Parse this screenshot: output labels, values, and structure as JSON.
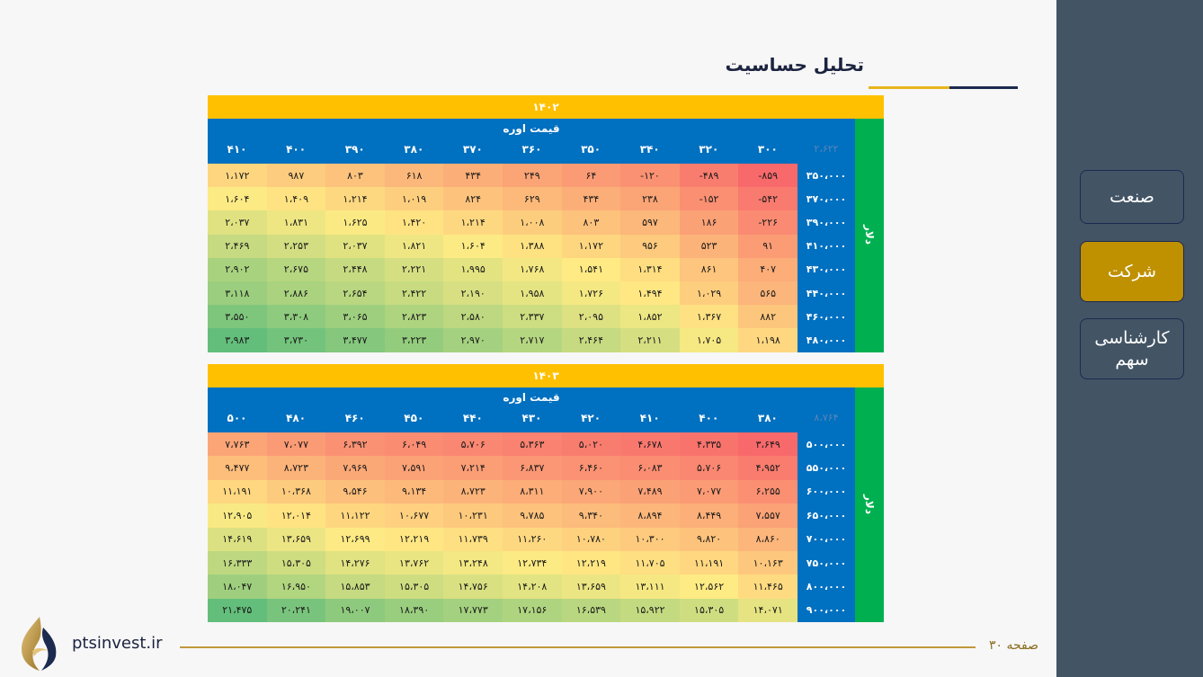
{
  "page": {
    "title": "تحلیل حساسیت",
    "footer_url": "ptsinvest.ir",
    "footer_page": "صفحه ۳۰"
  },
  "sidebar": {
    "items": [
      {
        "label": "صنعت",
        "active": false
      },
      {
        "label": "شرکت",
        "active": true
      },
      {
        "label": "کارشناسی سهم",
        "active": false
      }
    ]
  },
  "tables": [
    {
      "year": "۱۴۰۲",
      "col_caption": "قیمت اوره",
      "row_caption": "دلار",
      "corner": "۲،۶۲۲",
      "cols": [
        "۳۰۰",
        "۳۲۰",
        "۳۴۰",
        "۳۵۰",
        "۳۶۰",
        "۳۷۰",
        "۳۸۰",
        "۳۹۰",
        "۴۰۰",
        "۴۱۰"
      ],
      "rows": [
        "۳۵۰،۰۰۰",
        "۳۷۰،۰۰۰",
        "۳۹۰،۰۰۰",
        "۴۱۰،۰۰۰",
        "۴۳۰،۰۰۰",
        "۴۴۰،۰۰۰",
        "۴۶۰،۰۰۰",
        "۴۸۰،۰۰۰"
      ],
      "values": [
        [
          "-۸۵۹",
          "-۴۸۹",
          "-۱۲۰",
          "۶۴",
          "۲۴۹",
          "۴۳۴",
          "۶۱۸",
          "۸۰۳",
          "۹۸۷",
          "۱،۱۷۲"
        ],
        [
          "-۵۴۲",
          "-۱۵۲",
          "۲۳۸",
          "۴۳۴",
          "۶۲۹",
          "۸۲۴",
          "۱،۰۱۹",
          "۱،۲۱۴",
          "۱،۴۰۹",
          "۱،۶۰۴"
        ],
        [
          "-۲۲۶",
          "۱۸۶",
          "۵۹۷",
          "۸۰۳",
          "۱،۰۰۸",
          "۱،۲۱۴",
          "۱،۴۲۰",
          "۱،۶۲۵",
          "۱،۸۳۱",
          "۲،۰۳۷"
        ],
        [
          "۹۱",
          "۵۲۳",
          "۹۵۶",
          "۱،۱۷۲",
          "۱،۳۸۸",
          "۱،۶۰۴",
          "۱،۸۲۱",
          "۲،۰۳۷",
          "۲،۲۵۳",
          "۲،۴۶۹"
        ],
        [
          "۴۰۷",
          "۸۶۱",
          "۱،۳۱۴",
          "۱،۵۴۱",
          "۱،۷۶۸",
          "۱،۹۹۵",
          "۲،۲۲۱",
          "۲،۴۴۸",
          "۲،۶۷۵",
          "۲،۹۰۲"
        ],
        [
          "۵۶۵",
          "۱،۰۲۹",
          "۱،۴۹۴",
          "۱،۷۲۶",
          "۱،۹۵۸",
          "۲،۱۹۰",
          "۲،۴۲۲",
          "۲،۶۵۴",
          "۲،۸۸۶",
          "۳،۱۱۸"
        ],
        [
          "۸۸۲",
          "۱،۳۶۷",
          "۱،۸۵۲",
          "۲،۰۹۵",
          "۲،۳۳۷",
          "۲،۵۸۰",
          "۲،۸۲۳",
          "۳،۰۶۵",
          "۳،۳۰۸",
          "۳،۵۵۰"
        ],
        [
          "۱،۱۹۸",
          "۱،۷۰۵",
          "۲،۲۱۱",
          "۲،۴۶۴",
          "۲،۷۱۷",
          "۲،۹۷۰",
          "۳،۲۲۳",
          "۳،۴۷۷",
          "۳،۷۳۰",
          "۳،۹۸۳"
        ]
      ]
    },
    {
      "year": "۱۴۰۳",
      "col_caption": "قیمت اوره",
      "row_caption": "دلار",
      "corner": "۸،۷۶۴",
      "cols": [
        "۳۸۰",
        "۴۰۰",
        "۴۱۰",
        "۴۲۰",
        "۴۳۰",
        "۴۴۰",
        "۴۵۰",
        "۴۶۰",
        "۴۸۰",
        "۵۰۰"
      ],
      "rows": [
        "۵۰۰،۰۰۰",
        "۵۵۰،۰۰۰",
        "۶۰۰،۰۰۰",
        "۶۵۰،۰۰۰",
        "۷۰۰،۰۰۰",
        "۷۵۰،۰۰۰",
        "۸۰۰،۰۰۰",
        "۹۰۰،۰۰۰"
      ],
      "values": [
        [
          "۳،۶۴۹",
          "۴،۳۳۵",
          "۴،۶۷۸",
          "۵،۰۲۰",
          "۵،۳۶۳",
          "۵،۷۰۶",
          "۶،۰۴۹",
          "۶،۳۹۲",
          "۷،۰۷۷",
          "۷،۷۶۳"
        ],
        [
          "۴،۹۵۲",
          "۵،۷۰۶",
          "۶،۰۸۳",
          "۶،۴۶۰",
          "۶،۸۳۷",
          "۷،۲۱۴",
          "۷،۵۹۱",
          "۷،۹۶۹",
          "۸،۷۲۳",
          "۹،۴۷۷"
        ],
        [
          "۶،۲۵۵",
          "۷،۰۷۷",
          "۷،۴۸۹",
          "۷،۹۰۰",
          "۸،۳۱۱",
          "۸،۷۲۳",
          "۹،۱۳۴",
          "۹،۵۴۶",
          "۱۰،۳۶۸",
          "۱۱،۱۹۱"
        ],
        [
          "۷،۵۵۷",
          "۸،۴۴۹",
          "۸،۸۹۴",
          "۹،۳۴۰",
          "۹،۷۸۵",
          "۱۰،۲۳۱",
          "۱۰،۶۷۷",
          "۱۱،۱۲۲",
          "۱۲،۰۱۴",
          "۱۲،۹۰۵"
        ],
        [
          "۸،۸۶۰",
          "۹،۸۲۰",
          "۱۰،۳۰۰",
          "۱۰،۷۸۰",
          "۱۱،۲۶۰",
          "۱۱،۷۳۹",
          "۱۲،۲۱۹",
          "۱۲،۶۹۹",
          "۱۳،۶۵۹",
          "۱۴،۶۱۹"
        ],
        [
          "۱۰،۱۶۳",
          "۱۱،۱۹۱",
          "۱۱،۷۰۵",
          "۱۲،۲۱۹",
          "۱۲،۷۳۴",
          "۱۳،۲۴۸",
          "۱۳،۷۶۲",
          "۱۴،۲۷۶",
          "۱۵،۳۰۵",
          "۱۶،۳۳۳"
        ],
        [
          "۱۱،۴۶۵",
          "۱۲،۵۶۲",
          "۱۳،۱۱۱",
          "۱۳،۶۵۹",
          "۱۴،۲۰۸",
          "۱۴،۷۵۶",
          "۱۵،۳۰۵",
          "۱۵،۸۵۳",
          "۱۶،۹۵۰",
          "۱۸،۰۴۷"
        ],
        [
          "۱۴،۰۷۱",
          "۱۵،۳۰۵",
          "۱۵،۹۲۲",
          "۱۶،۵۳۹",
          "۱۷،۱۵۶",
          "۱۷،۷۷۳",
          "۱۸،۳۹۰",
          "۱۹،۰۰۷",
          "۲۰،۲۴۱",
          "۲۱،۴۷۵"
        ]
      ]
    }
  ]
}
